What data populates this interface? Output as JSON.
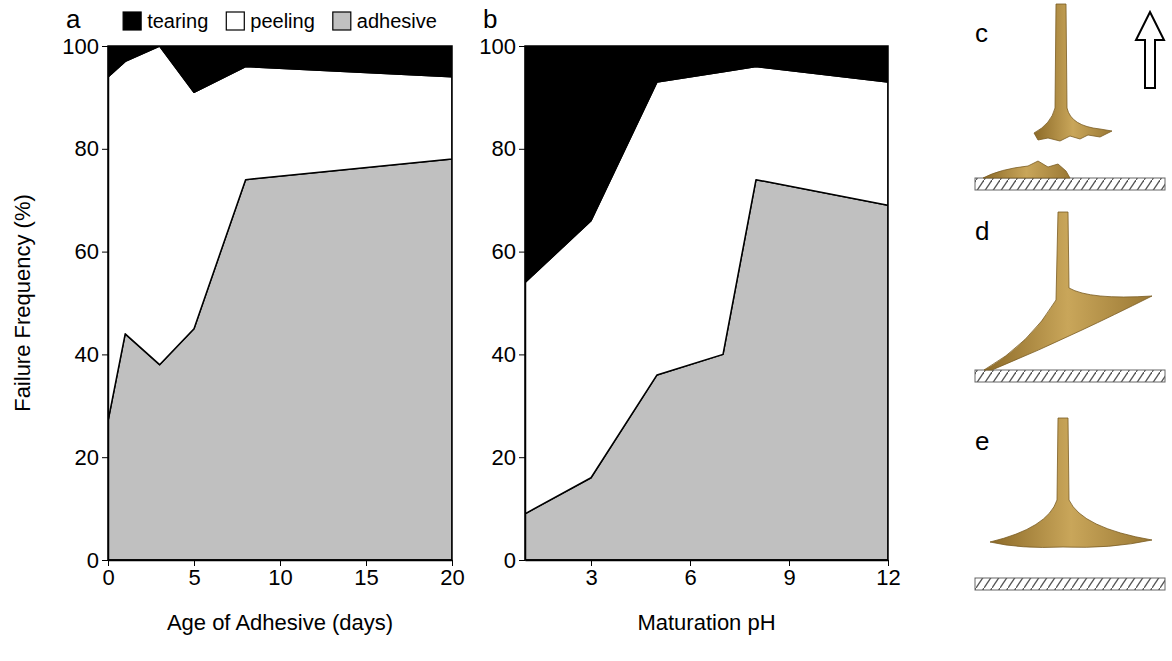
{
  "chart_data": [
    {
      "type": "area",
      "stacked": true,
      "panel_label": "a",
      "xlabel": "Age of Adhesive (days)",
      "ylabel": "Failure Frequency (%)",
      "x": [
        0,
        1,
        3,
        5,
        8,
        20
      ],
      "series": [
        {
          "name": "tearing",
          "color": "#000000",
          "values": [
            6,
            3,
            0,
            9,
            4,
            6
          ]
        },
        {
          "name": "peeling",
          "color": "#ffffff",
          "values": [
            67,
            53,
            62,
            46,
            22,
            16
          ]
        },
        {
          "name": "adhesive",
          "color": "#c0c0c0",
          "values": [
            27,
            44,
            38,
            45,
            74,
            78
          ]
        }
      ],
      "xlim": [
        0,
        20
      ],
      "xticks": [
        0,
        5,
        10,
        15,
        20
      ],
      "ylim": [
        0,
        100
      ],
      "yticks": [
        0,
        20,
        40,
        60,
        80,
        100
      ],
      "legend": "top"
    },
    {
      "type": "area",
      "stacked": true,
      "panel_label": "b",
      "xlabel": "Maturation pH",
      "x": [
        1,
        3,
        5,
        7,
        8,
        12
      ],
      "series": [
        {
          "name": "tearing",
          "color": "#000000",
          "values": [
            46,
            34,
            7,
            5,
            4,
            7
          ]
        },
        {
          "name": "peeling",
          "color": "#ffffff",
          "values": [
            45,
            50,
            57,
            55,
            22,
            24
          ]
        },
        {
          "name": "adhesive",
          "color": "#c0c0c0",
          "values": [
            9,
            16,
            36,
            40,
            74,
            69
          ]
        }
      ],
      "xlim": [
        1,
        12
      ],
      "xticks": [
        3,
        6,
        9,
        12
      ],
      "ylim": [
        0,
        100
      ],
      "yticks": [
        0,
        20,
        40,
        60,
        80,
        100
      ],
      "legend": false
    }
  ],
  "diagrams": [
    {
      "label": "c"
    },
    {
      "label": "d"
    },
    {
      "label": "e"
    }
  ]
}
